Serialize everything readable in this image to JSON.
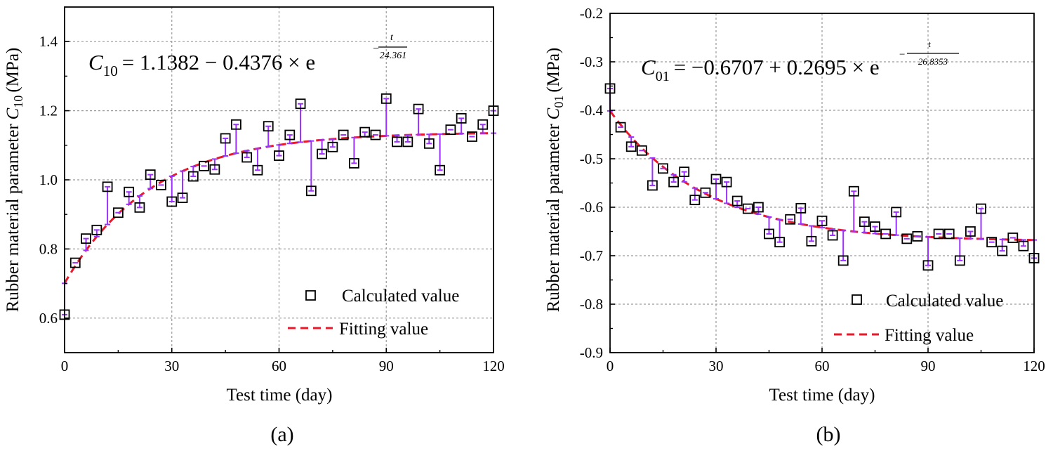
{
  "chart_data": [
    {
      "type": "scatter",
      "panel_label": "(a)",
      "equation": {
        "lhs_symbol": "C",
        "lhs_subscript": "10",
        "rhs": "= 1.1382 − 0.4376 × e",
        "exponent_sign": "−",
        "exponent_numerator": "t",
        "exponent_denominator": "24.361"
      },
      "xlabel": "Test time (day)",
      "ylabel": "Rubber material parameter",
      "ylabel_symbol": "C",
      "ylabel_subscript": "10",
      "ylabel_unit": "(MPa)",
      "xlim": [
        0,
        120
      ],
      "ylim": [
        0.5,
        1.5
      ],
      "xticks": [
        0,
        30,
        60,
        90,
        120
      ],
      "xtick_labels": [
        "0",
        "30",
        "60",
        "90",
        "120"
      ],
      "yticks": [
        0.6,
        0.8,
        1.0,
        1.2,
        1.4
      ],
      "ytick_labels": [
        "0.6",
        "0.8",
        "1.0",
        "1.2",
        "1.4"
      ],
      "grid": true,
      "legend": [
        "Calculated value",
        "Fitting value"
      ],
      "legend_position": "bottom-right",
      "fit": {
        "a": 1.1382,
        "b": -0.4376,
        "tau": 24.361
      },
      "series": [
        {
          "name": "Calculated value",
          "x": [
            0,
            3,
            6,
            9,
            12,
            15,
            18,
            21,
            24,
            27,
            30,
            33,
            36,
            39,
            42,
            45,
            48,
            51,
            54,
            57,
            60,
            63,
            66,
            69,
            72,
            75,
            78,
            81,
            84,
            87,
            90,
            93,
            96,
            99,
            102,
            105,
            108,
            111,
            114,
            117,
            120
          ],
          "y": [
            0.61,
            0.76,
            0.83,
            0.855,
            0.98,
            0.905,
            0.965,
            0.92,
            1.015,
            0.985,
            0.937,
            0.948,
            1.01,
            1.04,
            1.03,
            1.12,
            1.16,
            1.065,
            1.028,
            1.155,
            1.07,
            1.13,
            1.22,
            0.968,
            1.075,
            1.095,
            1.13,
            1.048,
            1.138,
            1.13,
            1.235,
            1.11,
            1.11,
            1.205,
            1.105,
            1.028,
            1.145,
            1.178,
            1.125,
            1.16,
            1.2
          ]
        }
      ]
    },
    {
      "type": "scatter",
      "panel_label": "(b)",
      "equation": {
        "lhs_symbol": "C",
        "lhs_subscript": "01",
        "rhs": "= −0.6707 + 0.2695 × e",
        "exponent_sign": "−",
        "exponent_numerator": "t",
        "exponent_denominator": "26.8353"
      },
      "xlabel": "Test time (day)",
      "ylabel": "Rubber material parameter",
      "ylabel_symbol": "C",
      "ylabel_subscript": "01",
      "ylabel_unit": "(MPa)",
      "xlim": [
        0,
        120
      ],
      "ylim": [
        -0.9,
        -0.2
      ],
      "xticks": [
        0,
        30,
        60,
        90,
        120
      ],
      "xtick_labels": [
        "0",
        "30",
        "60",
        "90",
        "120"
      ],
      "yticks": [
        -0.9,
        -0.8,
        -0.7,
        -0.6,
        -0.5,
        -0.4,
        -0.3,
        -0.2
      ],
      "ytick_labels": [
        "-0.9",
        "-0.8",
        "-0.7",
        "-0.6",
        "-0.5",
        "-0.4",
        "-0.3",
        "-0.2"
      ],
      "grid": true,
      "legend": [
        "Calculated value",
        "Fitting value"
      ],
      "legend_position": "bottom-right",
      "fit": {
        "a": -0.6707,
        "b": 0.2695,
        "tau": 26.8353
      },
      "series": [
        {
          "name": "Calculated value",
          "x": [
            0,
            3,
            6,
            9,
            12,
            15,
            18,
            21,
            24,
            27,
            30,
            33,
            36,
            39,
            42,
            45,
            48,
            51,
            54,
            57,
            60,
            63,
            66,
            69,
            72,
            75,
            78,
            81,
            84,
            87,
            90,
            93,
            96,
            99,
            102,
            105,
            108,
            111,
            114,
            117,
            120
          ],
          "y": [
            -0.355,
            -0.435,
            -0.475,
            -0.483,
            -0.555,
            -0.52,
            -0.548,
            -0.527,
            -0.585,
            -0.57,
            -0.542,
            -0.548,
            -0.587,
            -0.603,
            -0.6,
            -0.655,
            -0.672,
            -0.625,
            -0.602,
            -0.67,
            -0.628,
            -0.658,
            -0.71,
            -0.567,
            -0.63,
            -0.64,
            -0.655,
            -0.61,
            -0.665,
            -0.66,
            -0.72,
            -0.655,
            -0.655,
            -0.71,
            -0.65,
            -0.603,
            -0.672,
            -0.69,
            -0.663,
            -0.68,
            -0.705
          ]
        }
      ]
    }
  ]
}
